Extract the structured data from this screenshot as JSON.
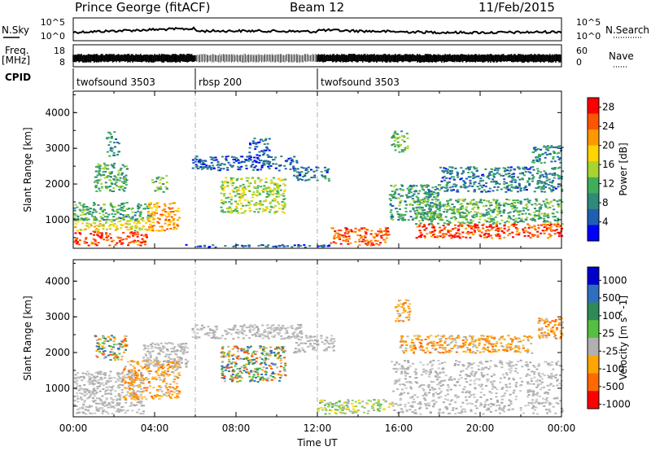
{
  "header": {
    "station": "Prince George (fitACF)",
    "beam": "Beam 12",
    "date": "11/Feb/2015"
  },
  "panel_labels": {
    "nsky": "N.Sky",
    "nsearch": "N.Search",
    "freq": "Freq.",
    "freq_unit": "[MHz]",
    "nave": "Nave",
    "cpid": "CPID"
  },
  "noise_axis": {
    "top": "10^5",
    "bottom": "10^0"
  },
  "freq_axis": {
    "left_ticks": [
      "18",
      "8"
    ],
    "right_ticks": [
      "60",
      "0"
    ]
  },
  "cpid_segments": [
    {
      "label": "twofsound 3503",
      "start_hour": 0,
      "end_hour": 6
    },
    {
      "label": "rbsp 200",
      "start_hour": 6,
      "end_hour": 12
    },
    {
      "label": "twofsound 3503",
      "start_hour": 12,
      "end_hour": 24
    }
  ],
  "colors": {
    "power_scale": [
      "#0000ff",
      "#1e5fb4",
      "#2f8a7a",
      "#3fae5a",
      "#a8d432",
      "#ffd400",
      "#ff9900",
      "#ff5500",
      "#ff0000"
    ],
    "velocity_scale": [
      "#0000cc",
      "#2f6fbf",
      "#2e8b57",
      "#55c040",
      "#b0b0b0",
      "#ffa500",
      "#ff6a00",
      "#ff0000"
    ],
    "data_gray": "#b8b8b8"
  },
  "chart_data": [
    {
      "type": "heatmap",
      "panel": "power",
      "xlabel": "Time UT",
      "ylabel": "Slant Range [km]",
      "xlim": [
        0,
        24
      ],
      "ylim": [
        200,
        4600
      ],
      "x_ticks": [
        "00:00",
        "04:00",
        "08:00",
        "12:00",
        "16:00",
        "20:00",
        "00:00"
      ],
      "y_ticks": [
        "1000",
        "2000",
        "3000",
        "4000"
      ],
      "colorbar": {
        "label": "Power [dB]",
        "ticks": [
          "4",
          "8",
          "12",
          "16",
          "20",
          "24",
          "28"
        ],
        "range": [
          0,
          30
        ]
      },
      "regions": [
        {
          "t0": 0.0,
          "t1": 3.6,
          "r0": 300,
          "r1": 700,
          "level": 28
        },
        {
          "t0": 0.0,
          "t1": 3.6,
          "r0": 700,
          "r1": 1000,
          "level": 18
        },
        {
          "t0": 0.0,
          "t1": 3.8,
          "r0": 1000,
          "r1": 1500,
          "level": 10
        },
        {
          "t0": 1.0,
          "t1": 2.6,
          "r0": 1800,
          "r1": 2600,
          "level": 11
        },
        {
          "t0": 1.6,
          "t1": 2.2,
          "r0": 2800,
          "r1": 3500,
          "level": 8
        },
        {
          "t0": 3.6,
          "t1": 5.2,
          "r0": 700,
          "r1": 1500,
          "level": 22
        },
        {
          "t0": 3.8,
          "t1": 4.6,
          "r0": 1800,
          "r1": 2300,
          "level": 12
        },
        {
          "t0": 5.8,
          "t1": 11.0,
          "r0": 2400,
          "r1": 2800,
          "level": 4
        },
        {
          "t0": 8.6,
          "t1": 9.6,
          "r0": 2800,
          "r1": 3300,
          "level": 4
        },
        {
          "t0": 7.2,
          "t1": 10.4,
          "r0": 1200,
          "r1": 2200,
          "level": 15
        },
        {
          "t0": 10.8,
          "t1": 12.6,
          "r0": 2100,
          "r1": 2500,
          "level": 6
        },
        {
          "t0": 12.6,
          "t1": 15.5,
          "r0": 300,
          "r1": 800,
          "level": 26
        },
        {
          "t0": 5.2,
          "t1": 12.6,
          "r0": 250,
          "r1": 320,
          "level": 4
        },
        {
          "t0": 15.5,
          "t1": 18.0,
          "r0": 1000,
          "r1": 2000,
          "level": 9
        },
        {
          "t0": 15.6,
          "t1": 16.4,
          "r0": 2900,
          "r1": 3500,
          "level": 12
        },
        {
          "t0": 16.8,
          "t1": 24.0,
          "r0": 500,
          "r1": 900,
          "level": 27
        },
        {
          "t0": 16.8,
          "t1": 24.0,
          "r0": 900,
          "r1": 1600,
          "level": 11
        },
        {
          "t0": 18.0,
          "t1": 24.0,
          "r0": 1800,
          "r1": 2500,
          "level": 6
        },
        {
          "t0": 22.5,
          "t1": 24.0,
          "r0": 2600,
          "r1": 3100,
          "level": 7
        }
      ]
    },
    {
      "type": "heatmap",
      "panel": "velocity",
      "xlabel": "Time UT",
      "ylabel": "Slant Range [km]",
      "xlim": [
        0,
        24
      ],
      "ylim": [
        200,
        4600
      ],
      "x_ticks": [
        "00:00",
        "04:00",
        "08:00",
        "12:00",
        "16:00",
        "20:00",
        "00:00"
      ],
      "y_ticks": [
        "1000",
        "2000",
        "3000",
        "4000"
      ],
      "colorbar": {
        "label": "Velocity [m s^-1]",
        "ticks": [
          "1000",
          "500",
          "100",
          "25",
          "-25",
          "-100",
          "-500",
          "-1000"
        ]
      },
      "regions": [
        {
          "t0": 0.0,
          "t1": 3.4,
          "r0": 300,
          "r1": 1500,
          "class": "gray"
        },
        {
          "t0": 2.4,
          "t1": 5.2,
          "r0": 700,
          "r1": 1800,
          "class": "orange"
        },
        {
          "t0": 3.4,
          "t1": 5.6,
          "r0": 1600,
          "r1": 2300,
          "class": "gray"
        },
        {
          "t0": 1.0,
          "t1": 2.6,
          "r0": 1800,
          "r1": 2500,
          "class": "mixed"
        },
        {
          "t0": 5.8,
          "t1": 11.2,
          "r0": 2400,
          "r1": 2800,
          "class": "gray"
        },
        {
          "t0": 7.2,
          "t1": 10.4,
          "r0": 1200,
          "r1": 2200,
          "class": "mixed"
        },
        {
          "t0": 10.8,
          "t1": 12.8,
          "r0": 2000,
          "r1": 2500,
          "class": "gray"
        },
        {
          "t0": 12.0,
          "t1": 15.6,
          "r0": 300,
          "r1": 700,
          "class": "green"
        },
        {
          "t0": 15.8,
          "t1": 16.5,
          "r0": 2900,
          "r1": 3500,
          "class": "orange"
        },
        {
          "t0": 16.0,
          "t1": 22.5,
          "r0": 2000,
          "r1": 2500,
          "class": "orange"
        },
        {
          "t0": 15.6,
          "t1": 24.0,
          "r0": 300,
          "r1": 1800,
          "class": "gray"
        },
        {
          "t0": 22.8,
          "t1": 24.0,
          "r0": 2400,
          "r1": 3000,
          "class": "orange"
        }
      ]
    }
  ]
}
